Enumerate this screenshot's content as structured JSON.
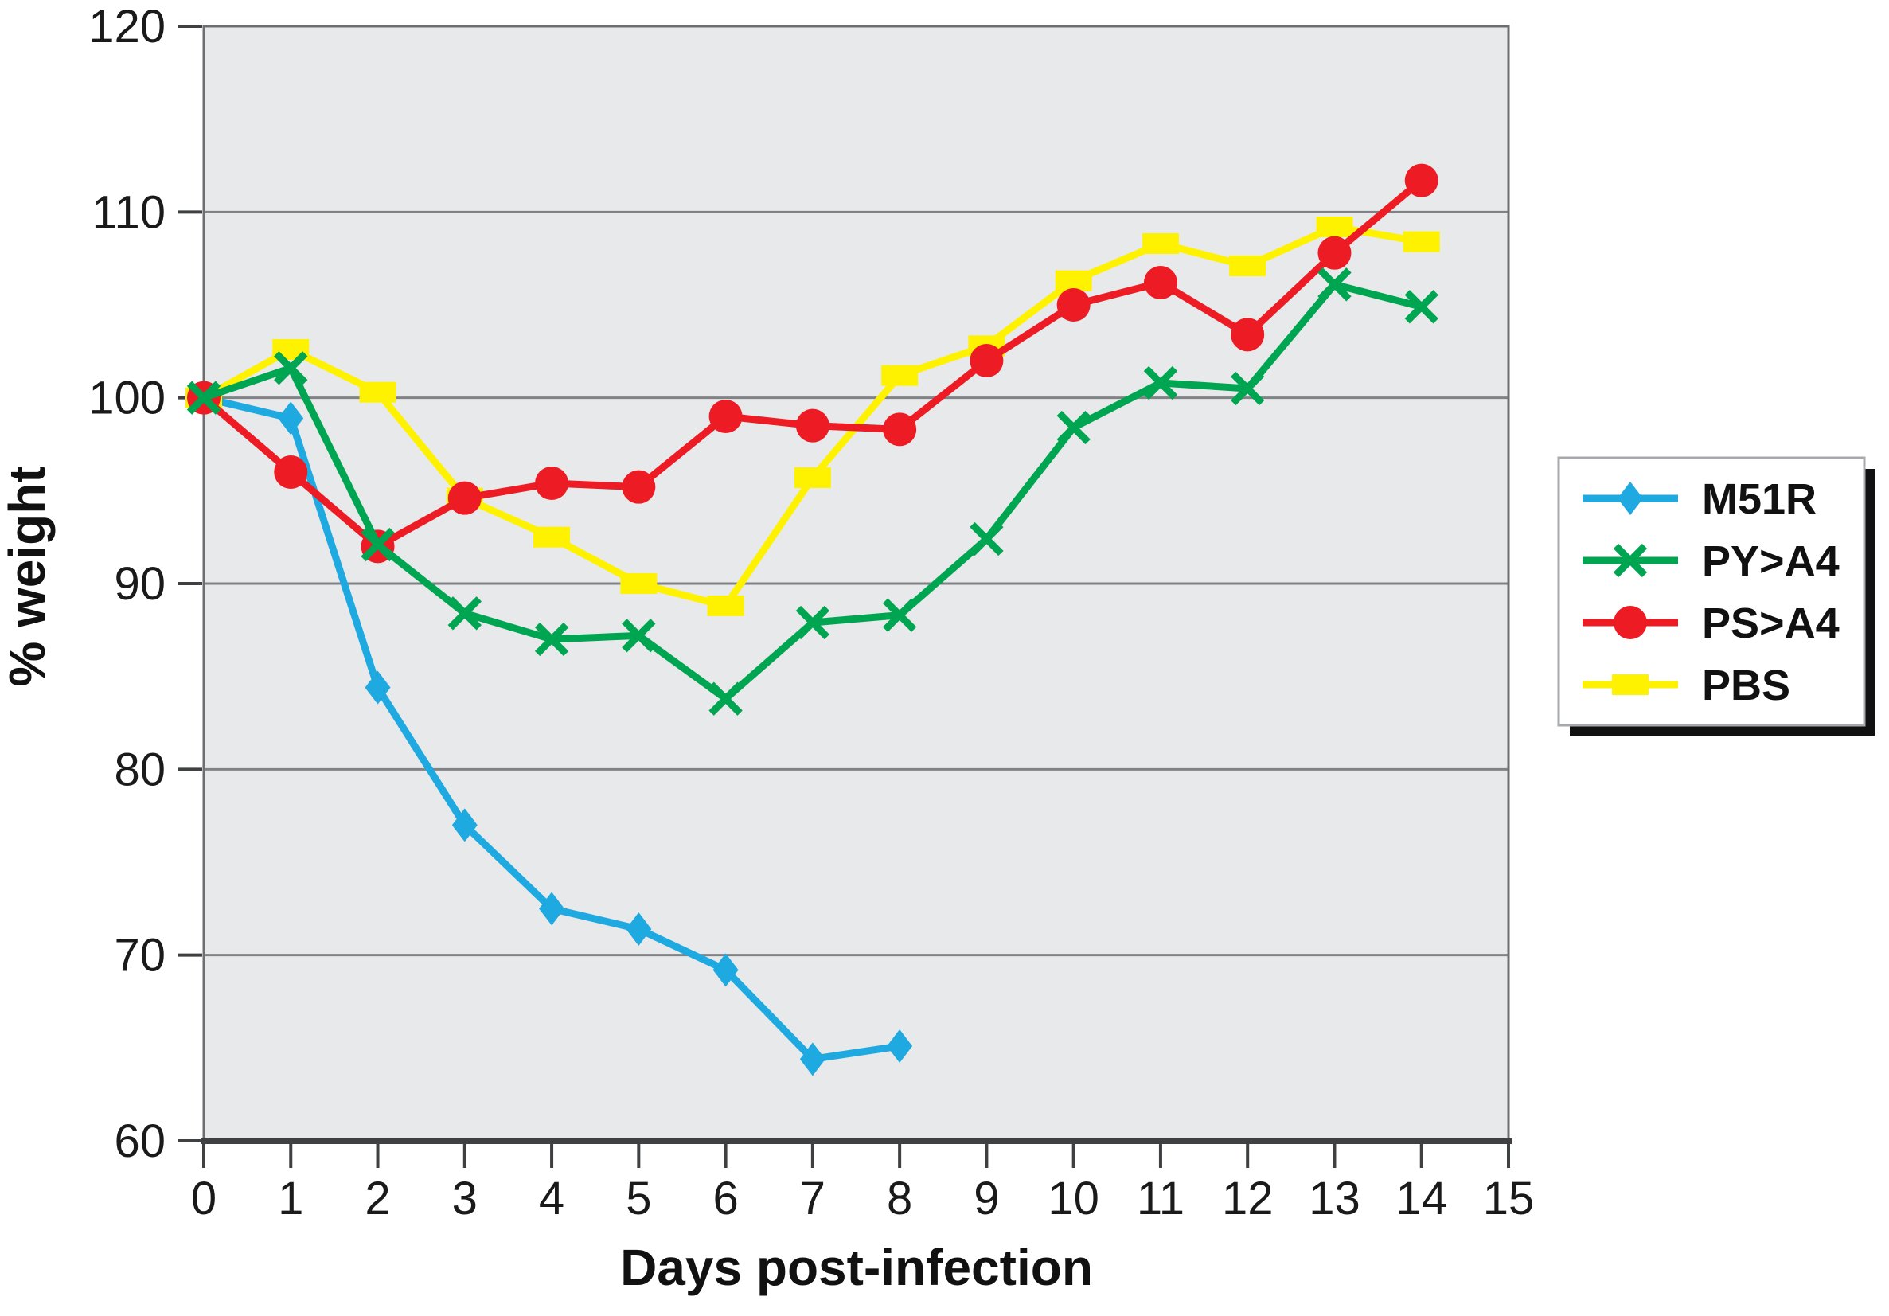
{
  "chart_data": {
    "type": "line",
    "title": "",
    "xlabel": "Days post-infection",
    "ylabel": "% weight",
    "xlim": [
      0,
      15
    ],
    "ylim": [
      60,
      120
    ],
    "xticks": [
      0,
      1,
      2,
      3,
      4,
      5,
      6,
      7,
      8,
      9,
      10,
      11,
      12,
      13,
      14,
      15
    ],
    "yticks": [
      60,
      70,
      80,
      90,
      100,
      110,
      120
    ],
    "grid": "horizontal",
    "legend_position": "right-outside",
    "plot_bg_color": "#E8E9EA",
    "grid_color": "#808285",
    "frame_color": "#6D6E71",
    "axis_color": "#3F4042",
    "tick_text_color": "#1a1a1a",
    "legend_border_color": "#A7A9AC",
    "legend_shadow_color": "#111111",
    "x": [
      0,
      1,
      2,
      3,
      4,
      5,
      6,
      7,
      8,
      9,
      10,
      11,
      12,
      13,
      14
    ],
    "series": [
      {
        "name": "M51R",
        "color": "#1FA9E1",
        "marker": "diamond",
        "values": [
          100,
          98.9,
          84.4,
          77,
          72.5,
          71.4,
          69.2,
          64.4,
          65.1
        ]
      },
      {
        "name": "PY>A4",
        "color": "#00A551",
        "marker": "x",
        "values": [
          100,
          101.6,
          92.1,
          88.4,
          87,
          87.2,
          83.8,
          87.9,
          88.3,
          92.4,
          98.4,
          100.8,
          100.5,
          106.1,
          104.9
        ]
      },
      {
        "name": "PS>A4",
        "color": "#EC1B24",
        "marker": "circle",
        "values": [
          100,
          96,
          92,
          94.6,
          95.4,
          95.2,
          99,
          98.5,
          98.3,
          102,
          105,
          106.2,
          103.4,
          107.8,
          111.7
        ]
      },
      {
        "name": "PBS",
        "color": "#FFF200",
        "marker": "square",
        "values": [
          100,
          102.6,
          100.3,
          94.6,
          92.5,
          90,
          88.8,
          95.7,
          101.2,
          102.8,
          106.3,
          108.3,
          107.1,
          109.2,
          108.4
        ]
      }
    ],
    "draw_order": [
      "M51R",
      "PBS",
      "PS>A4",
      "PY>A4"
    ]
  }
}
